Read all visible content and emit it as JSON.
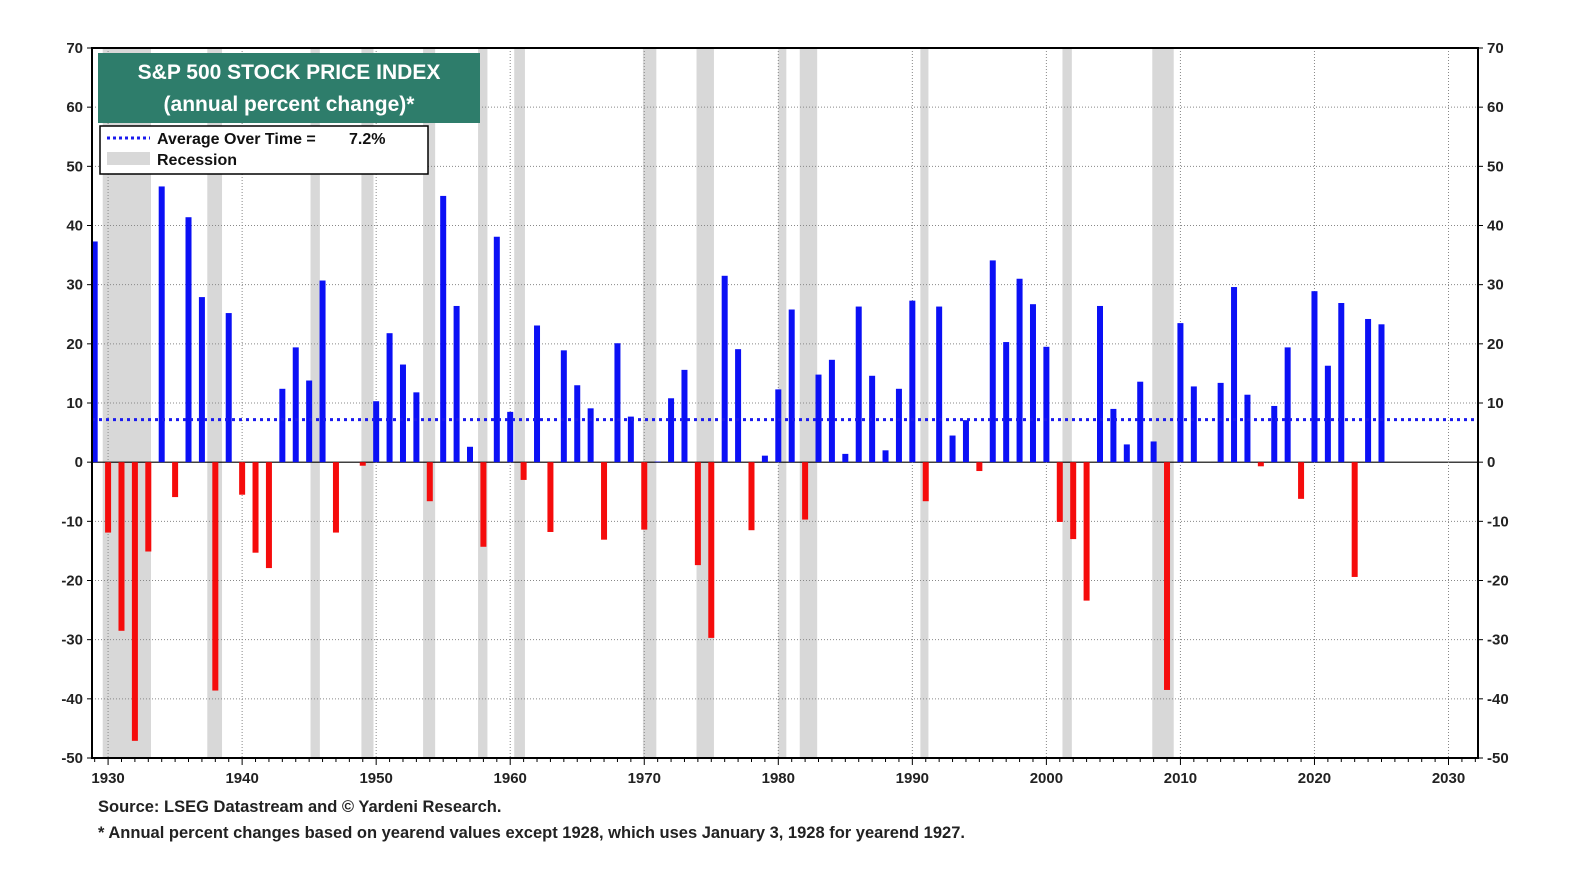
{
  "chart_data": {
    "type": "bar",
    "title_line1": "S&P 500 STOCK PRICE INDEX",
    "title_line2": "(annual percent change)*",
    "legend": {
      "average_label": "Average Over Time =",
      "average_value_label": "7.2%",
      "recession_label": "Recession",
      "placement": "top-left"
    },
    "average_value": 7.2,
    "ylim": [
      -50,
      70
    ],
    "y_ticks": [
      -50,
      -40,
      -30,
      -20,
      -10,
      0,
      10,
      20,
      30,
      40,
      50,
      60,
      70
    ],
    "xlim": [
      1928.8,
      2032.2
    ],
    "x_ticks": [
      1930,
      1940,
      1950,
      1960,
      1970,
      1980,
      1990,
      2000,
      2010,
      2020,
      2030
    ],
    "grid": true,
    "colors": {
      "positive": "#0b10f5",
      "negative": "#f50c0c",
      "recession": "#d8d8d8",
      "title_bg": "#2e7d6b",
      "average_line": "#1a1aee"
    },
    "x": [
      1929,
      1930,
      1931,
      1932,
      1933,
      1934,
      1935,
      1936,
      1937,
      1938,
      1939,
      1940,
      1941,
      1942,
      1943,
      1944,
      1945,
      1946,
      1947,
      1948,
      1949,
      1950,
      1951,
      1952,
      1953,
      1954,
      1955,
      1956,
      1957,
      1958,
      1959,
      1960,
      1961,
      1962,
      1963,
      1964,
      1965,
      1966,
      1967,
      1968,
      1969,
      1970,
      1971,
      1972,
      1973,
      1974,
      1975,
      1976,
      1977,
      1978,
      1979,
      1980,
      1981,
      1982,
      1983,
      1984,
      1985,
      1986,
      1987,
      1988,
      1989,
      1990,
      1991,
      1992,
      1993,
      1994,
      1995,
      1996,
      1997,
      1998,
      1999,
      2000,
      2001,
      2002,
      2003,
      2004,
      2005,
      2006,
      2007,
      2008,
      2009,
      2010,
      2011,
      2012,
      2013,
      2014,
      2015,
      2016,
      2017,
      2018,
      2019,
      2020,
      2021,
      2022,
      2023,
      2024,
      2025
    ],
    "values": [
      37.3,
      -11.9,
      -28.5,
      -47.1,
      -15.1,
      46.6,
      -5.9,
      41.4,
      27.9,
      -38.6,
      25.2,
      -5.5,
      -15.3,
      -17.9,
      12.4,
      19.4,
      13.8,
      30.7,
      -11.9,
      0,
      -0.6,
      10.3,
      21.8,
      16.5,
      11.8,
      -6.6,
      45.0,
      26.4,
      2.6,
      -14.3,
      38.1,
      8.5,
      -3.0,
      23.1,
      -11.8,
      18.9,
      13.0,
      9.1,
      -13.1,
      20.1,
      7.7,
      -11.4,
      0.1,
      10.8,
      15.6,
      -17.4,
      -29.7,
      31.5,
      19.1,
      -11.5,
      1.1,
      12.3,
      25.8,
      -9.7,
      14.8,
      17.3,
      1.4,
      26.3,
      14.6,
      2.0,
      12.4,
      27.3,
      -6.6,
      26.3,
      4.5,
      7.1,
      -1.5,
      34.1,
      20.3,
      31.0,
      26.7,
      19.5,
      -10.1,
      -13.0,
      -23.4,
      26.4,
      9.0,
      3.0,
      13.6,
      3.5,
      -38.5,
      23.5,
      12.8,
      0,
      13.4,
      29.6,
      11.4,
      -0.7,
      9.5,
      19.4,
      -6.2,
      28.9,
      16.3,
      26.9,
      -19.4,
      24.2,
      23.3
    ],
    "recessions": [
      [
        1929.6,
        1933.2
      ],
      [
        1937.4,
        1938.5
      ],
      [
        1945.1,
        1945.8
      ],
      [
        1948.9,
        1949.8
      ],
      [
        1953.5,
        1954.4
      ],
      [
        1957.6,
        1958.3
      ],
      [
        1960.3,
        1961.1
      ],
      [
        1969.9,
        1970.9
      ],
      [
        1973.9,
        1975.2
      ],
      [
        1980.0,
        1980.6
      ],
      [
        1981.6,
        1982.9
      ],
      [
        1990.6,
        1991.2
      ],
      [
        2001.2,
        2001.9
      ],
      [
        2007.9,
        2009.5
      ]
    ],
    "source": "Source: LSEG Datastream and © Yardeni Research.",
    "footnote": "* Annual percent changes based on yearend values except 1928, which uses January 3, 1928 for yearend 1927."
  }
}
